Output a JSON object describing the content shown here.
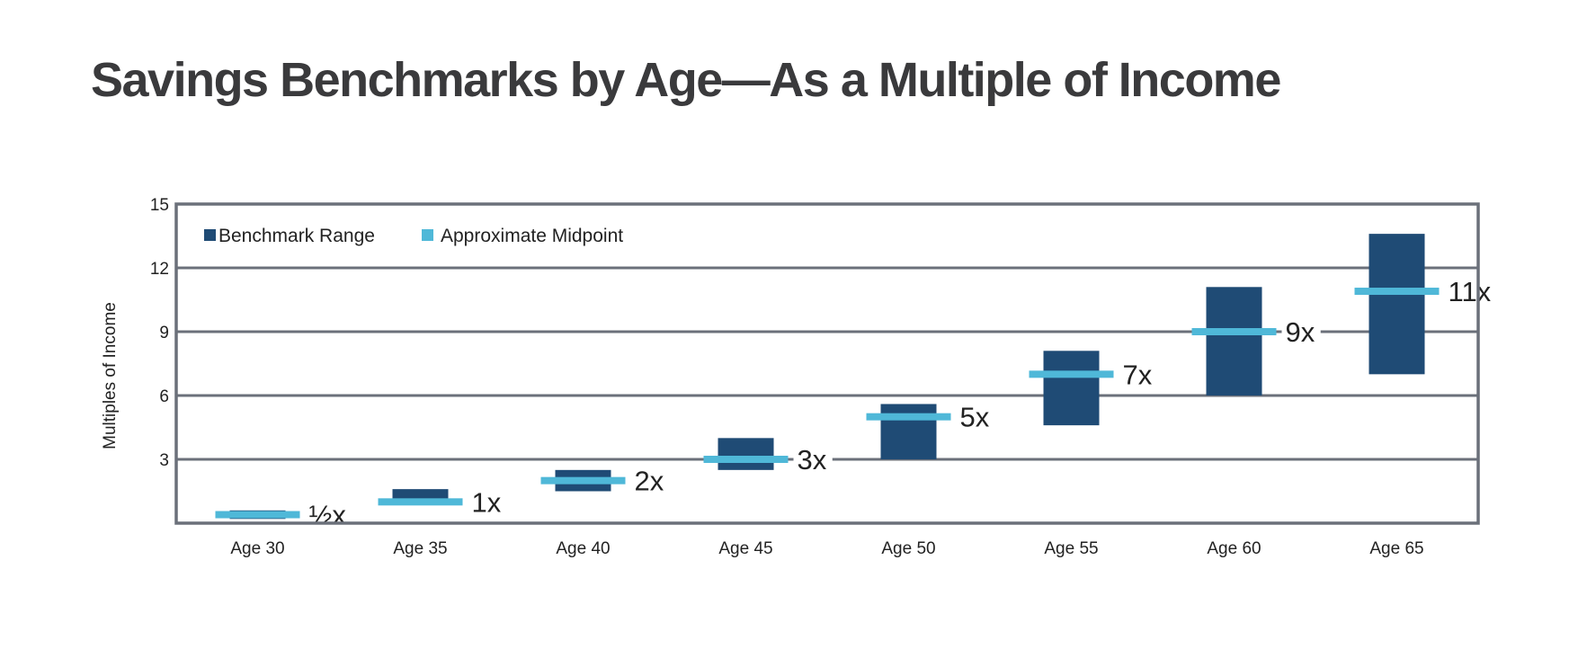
{
  "title": "Savings Benchmarks by Age—As a Multiple of Income",
  "colors": {
    "range": "#1f4b75",
    "midpoint": "#4fb8d8",
    "grid": "#6b707a",
    "title": "#3a3a3c"
  },
  "chart_data": {
    "type": "bar",
    "subtype": "floating-range-with-midpoint",
    "title": "Savings Benchmarks by Age—As a Multiple of Income",
    "xlabel": "",
    "ylabel": "Multiples of Income",
    "ylim": [
      0,
      15
    ],
    "yticks": [
      3,
      6,
      9,
      12,
      15
    ],
    "grid": true,
    "legend_position": "top-left",
    "legend": [
      "Benchmark Range",
      "Approximate Midpoint"
    ],
    "categories": [
      "Age 30",
      "Age 35",
      "Age 40",
      "Age 45",
      "Age 50",
      "Age 55",
      "Age 60",
      "Age 65"
    ],
    "series": [
      {
        "name": "Benchmark Range",
        "low": [
          0.2,
          1.0,
          1.5,
          2.5,
          3.0,
          4.6,
          6.0,
          7.0
        ],
        "high": [
          0.6,
          1.6,
          2.5,
          4.0,
          5.6,
          8.1,
          11.1,
          13.6
        ]
      },
      {
        "name": "Approximate Midpoint",
        "values": [
          0.4,
          1.0,
          2.0,
          3.0,
          5.0,
          7.0,
          9.0,
          10.9
        ],
        "labels": [
          "½x",
          "1x",
          "2x",
          "3x",
          "5x",
          "7x",
          "9x",
          "11x"
        ]
      }
    ]
  }
}
